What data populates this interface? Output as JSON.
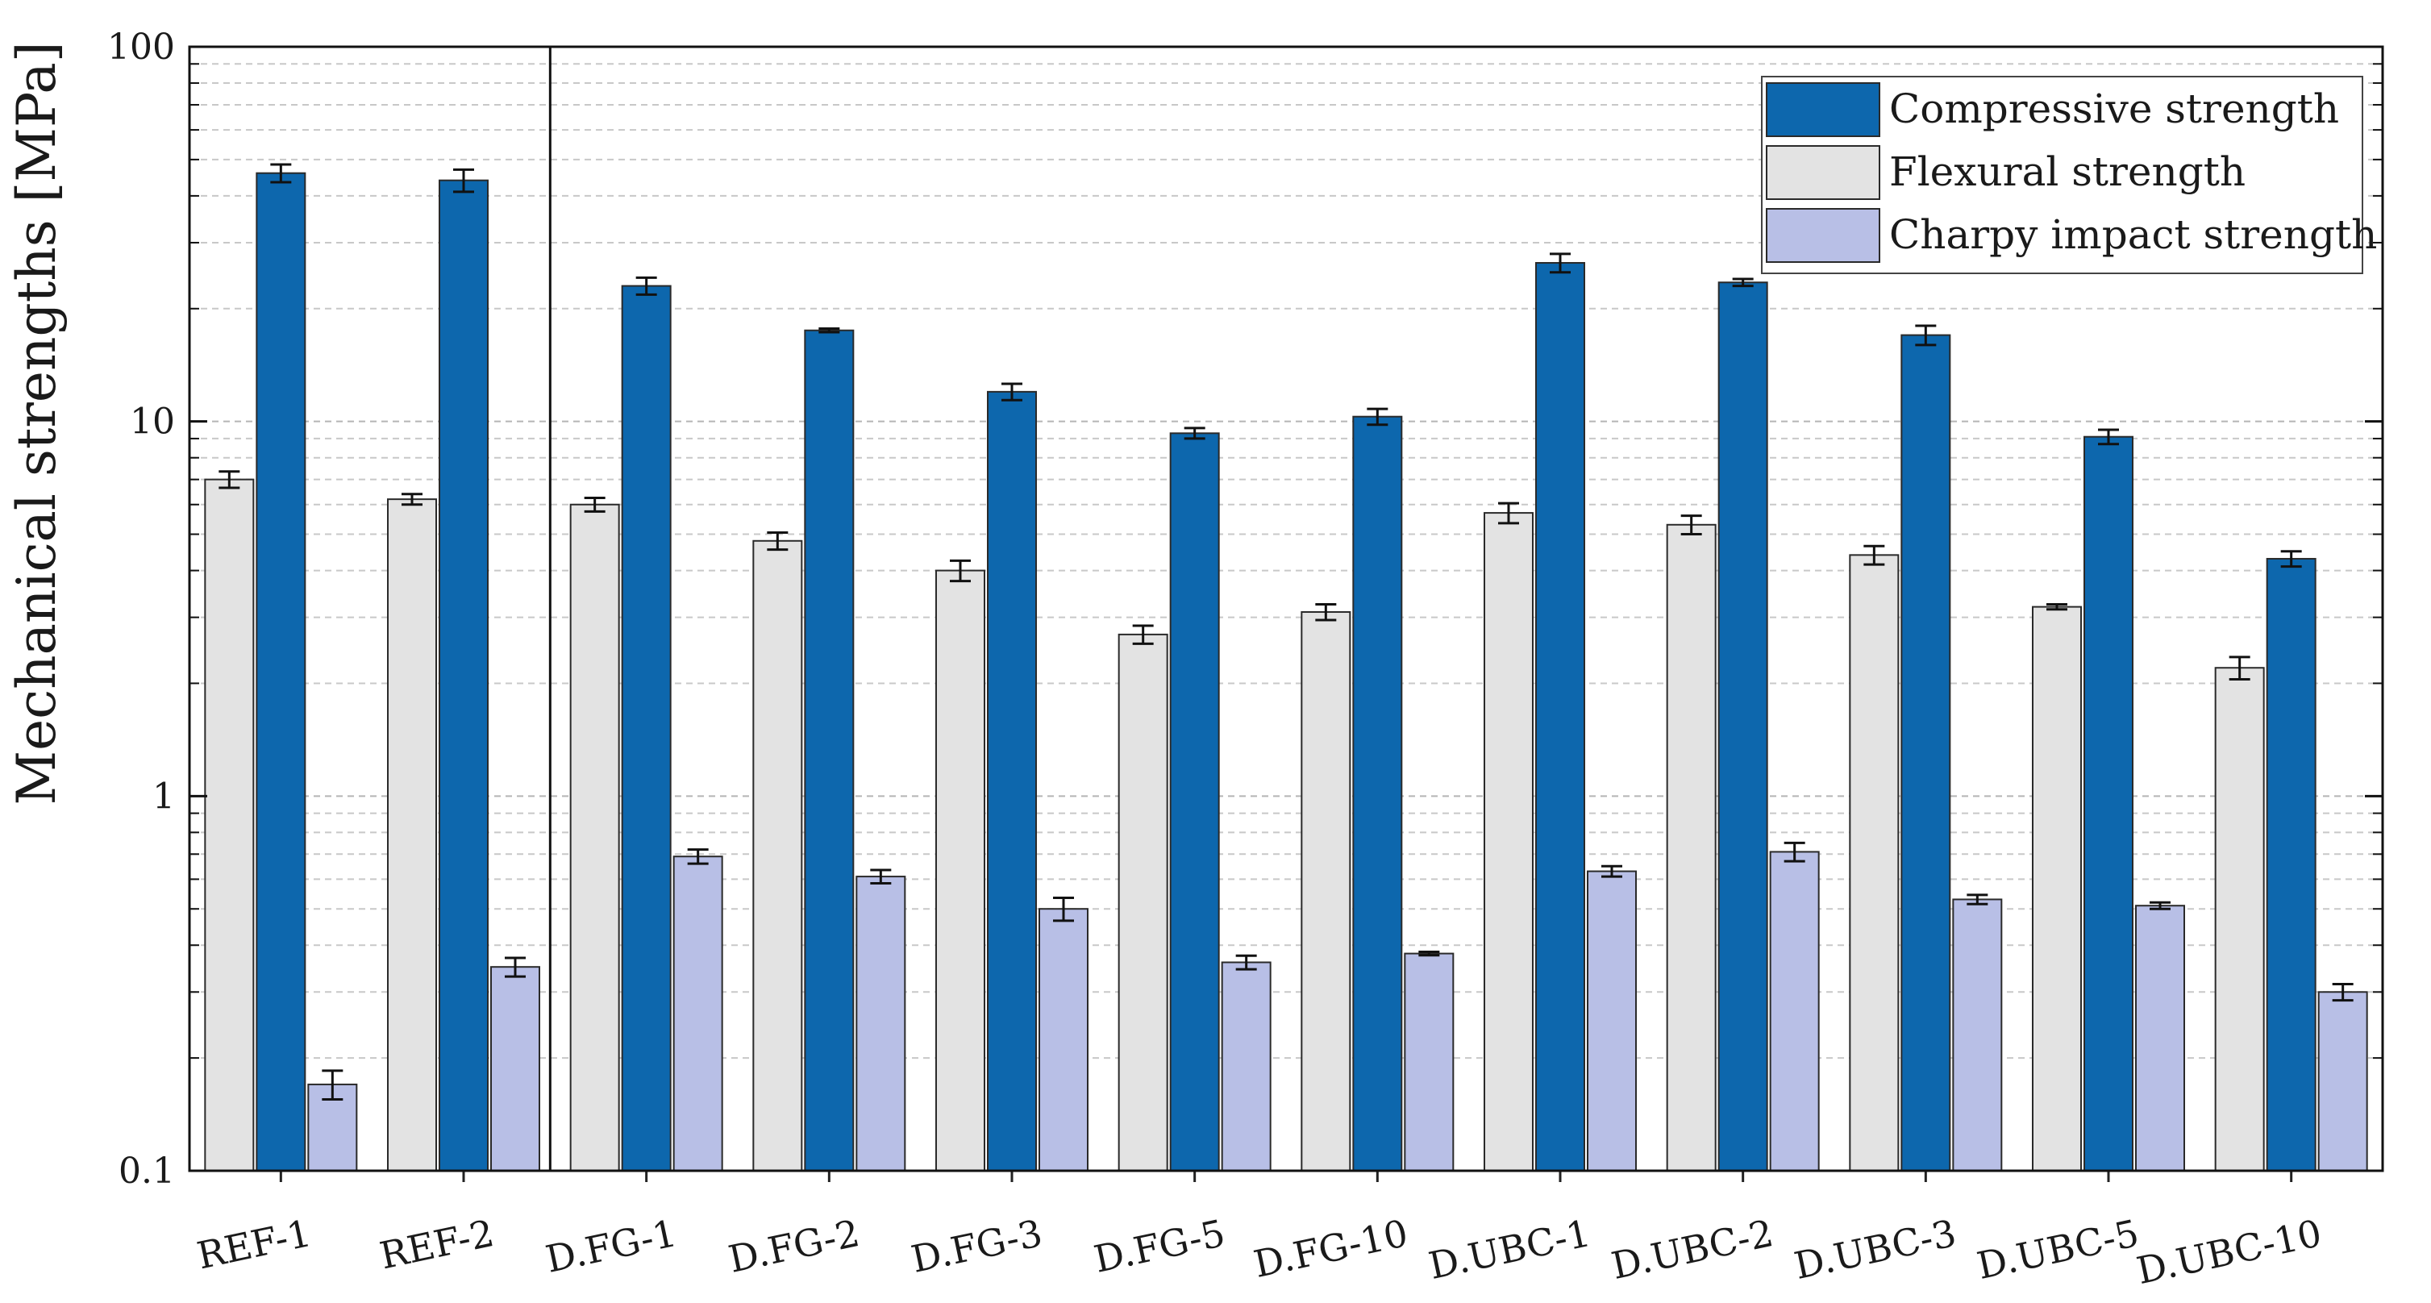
{
  "chart_data": {
    "type": "bar",
    "title": "",
    "xlabel": "",
    "ylabel": "Mechanical strengths [MPa]",
    "yscale": "log",
    "ylim": [
      0.1,
      100
    ],
    "yticks": [
      "0.1",
      "1",
      "10",
      "100"
    ],
    "grid": "dashed horizontal minor and major gridlines",
    "legend_position": "top-right",
    "categories": [
      "REF-1",
      "REF-2",
      "D.FG-1",
      "D.FG-2",
      "D.FG-3",
      "D.FG-5",
      "D.FG-10",
      "D.UBC-1",
      "D.UBC-2",
      "D.UBC-3",
      "D.UBC-5",
      "D.UBC-10"
    ],
    "series": [
      {
        "name": "Flexural strength",
        "color": "#e3e3e3",
        "values": [
          7.0,
          6.2,
          6.0,
          4.8,
          4.0,
          2.7,
          3.1,
          5.7,
          5.3,
          4.4,
          3.2,
          2.2
        ],
        "errors": [
          0.35,
          0.2,
          0.25,
          0.25,
          0.25,
          0.15,
          0.15,
          0.35,
          0.3,
          0.25,
          0.05,
          0.15
        ]
      },
      {
        "name": "Compressive strength",
        "color": "#0d67ad",
        "values": [
          46,
          44,
          23,
          17.5,
          12,
          9.3,
          10.3,
          26.5,
          23.5,
          17,
          9.1,
          4.3
        ],
        "errors": [
          2.5,
          3.0,
          1.2,
          0.2,
          0.6,
          0.3,
          0.5,
          1.5,
          0.5,
          1.0,
          0.4,
          0.2
        ]
      },
      {
        "name": "Charpy impact strength",
        "color": "#b8bfe6",
        "values": [
          0.17,
          0.35,
          0.69,
          0.61,
          0.5,
          0.36,
          0.38,
          0.63,
          0.71,
          0.53,
          0.51,
          0.3
        ],
        "errors": [
          0.015,
          0.02,
          0.03,
          0.025,
          0.035,
          0.015,
          0.004,
          0.02,
          0.04,
          0.015,
          0.01,
          0.015
        ]
      }
    ],
    "legend": [
      "Compressive strength",
      "Flexural strength",
      "Charpy impact strength"
    ],
    "legend_colors": [
      "#0d67ad",
      "#e3e3e3",
      "#b8bfe6"
    ],
    "separator_after_category": "REF-2"
  }
}
